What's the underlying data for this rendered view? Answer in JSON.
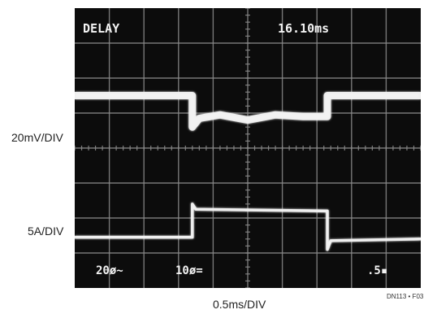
{
  "chart_data": {
    "type": "line",
    "title": "",
    "channel_labels": [
      "20mV/DIV",
      "5A/DIV"
    ],
    "xlabel": "0.5ms/DIV",
    "figure_ref": "DN113 • F03",
    "screen_readouts": {
      "mode": "DELAY",
      "delay_time": "16.10ms",
      "ch1_setting": "20ø~",
      "ch2_setting": "10ø=",
      "timebase": ".5▪"
    },
    "grid": true,
    "divisions": {
      "x": 10,
      "y": 8
    },
    "x_units": "div",
    "y_units": "div",
    "colors": {
      "screen": "#0c0c0c",
      "trace": "#f2f2f2",
      "grid": "#8a8a8a"
    },
    "series": [
      {
        "name": "",
        "x": [
          0,
          3.4,
          3.4,
          3.6,
          4.2,
          5.0,
          5.8,
          6.6,
          7.3,
          7.3,
          10
        ],
        "y": [
          5.5,
          5.5,
          4.6,
          4.85,
          4.95,
          4.8,
          4.95,
          4.9,
          4.9,
          5.5,
          5.5
        ]
      },
      {
        "name": "",
        "x": [
          0,
          3.4,
          3.4,
          3.5,
          7.3,
          7.3,
          7.4,
          10
        ],
        "y": [
          1.45,
          1.45,
          2.4,
          2.25,
          2.2,
          1.1,
          1.35,
          1.4
        ]
      }
    ]
  }
}
